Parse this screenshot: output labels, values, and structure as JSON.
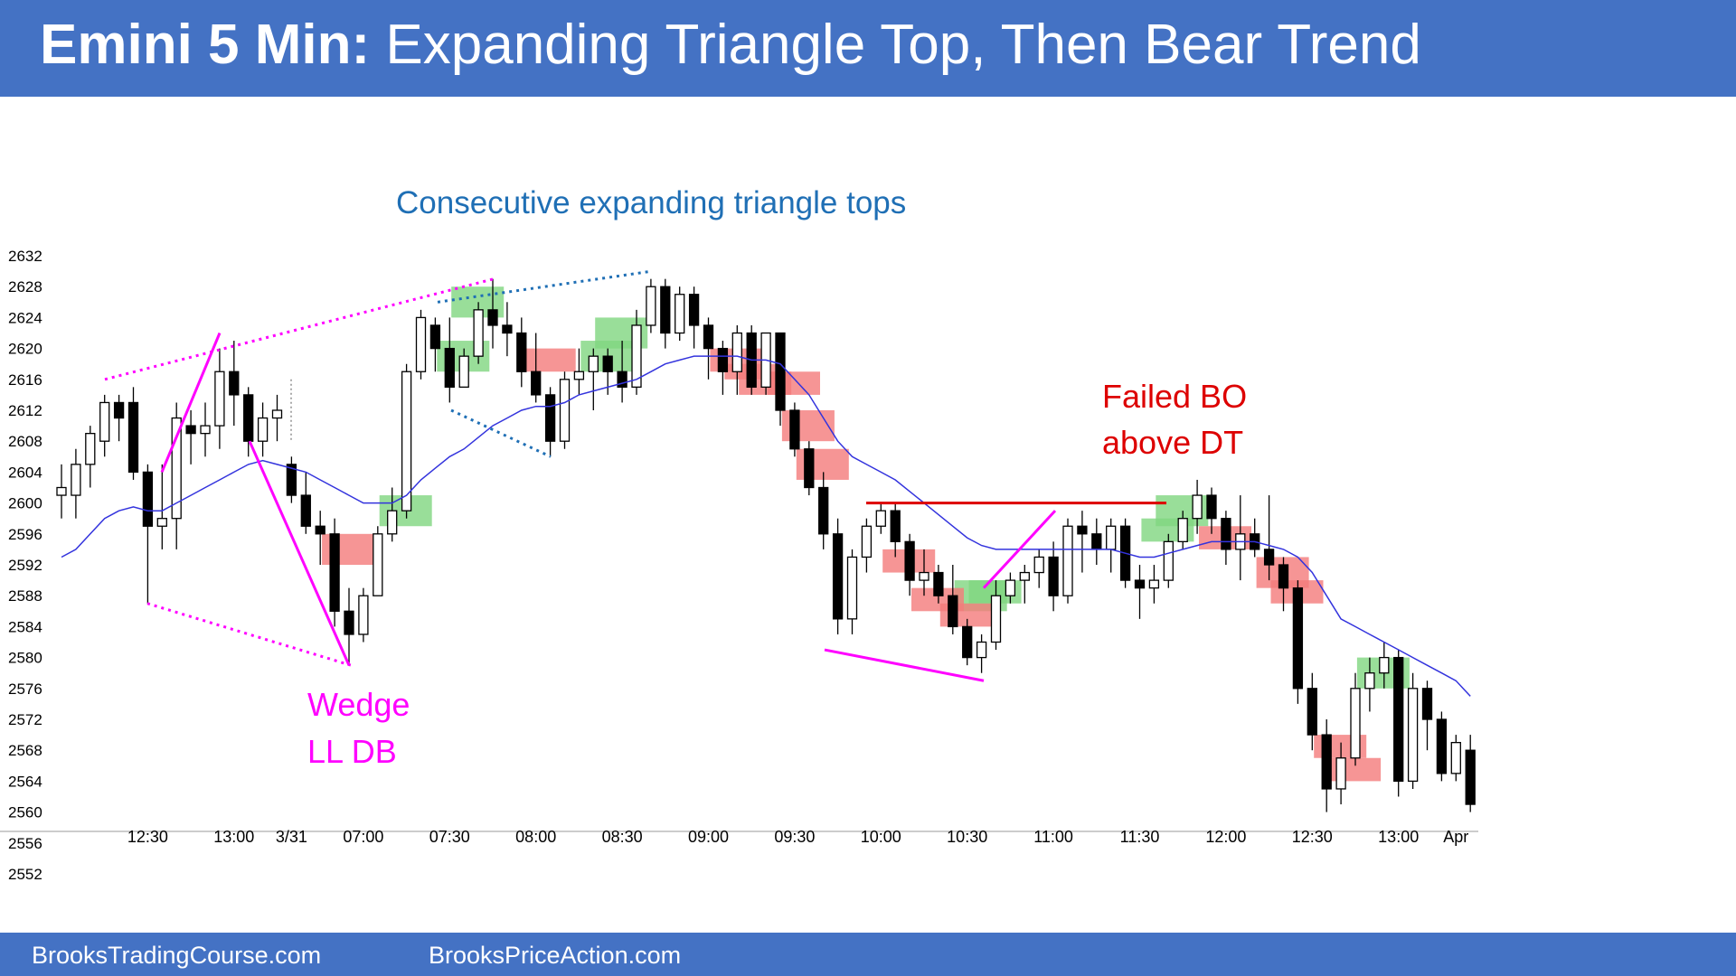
{
  "header": {
    "title_bold": "Emini 5 Min:",
    "title_rest": "Expanding Triangle Top, Then Bear Trend"
  },
  "footer": {
    "left_link": "BrooksTradingCourse.com",
    "right_link": "BrooksPriceAction.com"
  },
  "colors": {
    "header_bg": "#4472C4",
    "bull_body": "#ffffff",
    "bear_body": "#000000",
    "ema_line": "#3333dd",
    "magenta": "#ff00ff",
    "dotted_blue": "#1f6fb5",
    "resistance_red": "#dd0000",
    "green_box": "#7fd67f",
    "red_box": "#f47a7a"
  },
  "chart_data": {
    "type": "candlestick",
    "ylim": [
      2550,
      2634
    ],
    "y_ticks": [
      2632,
      2628,
      2624,
      2620,
      2616,
      2612,
      2608,
      2604,
      2600,
      2596,
      2592,
      2588,
      2584,
      2580,
      2576,
      2572,
      2568,
      2564,
      2560,
      2556,
      2552
    ],
    "x_ticks": [
      {
        "bar": 6,
        "label": "12:30"
      },
      {
        "bar": 12,
        "label": "13:00"
      },
      {
        "bar": 16,
        "label": "3/31"
      },
      {
        "bar": 21,
        "label": "07:00"
      },
      {
        "bar": 27,
        "label": "07:30"
      },
      {
        "bar": 33,
        "label": "08:00"
      },
      {
        "bar": 39,
        "label": "08:30"
      },
      {
        "bar": 45,
        "label": "09:00"
      },
      {
        "bar": 51,
        "label": "09:30"
      },
      {
        "bar": 57,
        "label": "10:00"
      },
      {
        "bar": 63,
        "label": "10:30"
      },
      {
        "bar": 69,
        "label": "11:00"
      },
      {
        "bar": 75,
        "label": "11:30"
      },
      {
        "bar": 81,
        "label": "12:00"
      },
      {
        "bar": 87,
        "label": "12:30"
      },
      {
        "bar": 93,
        "label": "13:00"
      },
      {
        "bar": 97,
        "label": "Apr"
      }
    ],
    "ohlc": [
      [
        2601,
        2605,
        2598,
        2602
      ],
      [
        2601,
        2607,
        2598,
        2605
      ],
      [
        2605,
        2610,
        2602,
        2609
      ],
      [
        2608,
        2614,
        2606,
        2613
      ],
      [
        2613,
        2614,
        2608,
        2611
      ],
      [
        2613,
        2615,
        2603,
        2604
      ],
      [
        2604,
        2605,
        2587,
        2597
      ],
      [
        2597,
        2605,
        2594,
        2598
      ],
      [
        2598,
        2613,
        2594,
        2611
      ],
      [
        2610,
        2612,
        2605,
        2609
      ],
      [
        2609,
        2613,
        2606,
        2610
      ],
      [
        2610,
        2620,
        2607,
        2617
      ],
      [
        2617,
        2621,
        2610,
        2614
      ],
      [
        2614,
        2615,
        2606,
        2608
      ],
      [
        2608,
        2613,
        2606,
        2611
      ],
      [
        2611,
        2614,
        2608,
        2612
      ],
      [
        2605,
        2606,
        2600,
        2601
      ],
      [
        2601,
        2604,
        2596,
        2597
      ],
      [
        2597,
        2599,
        2592,
        2596
      ],
      [
        2596,
        2598,
        2584,
        2586
      ],
      [
        2586,
        2589,
        2579,
        2583
      ],
      [
        2583,
        2589,
        2582,
        2588
      ],
      [
        2588,
        2597,
        2588,
        2596
      ],
      [
        2596,
        2602,
        2595,
        2599
      ],
      [
        2599,
        2618,
        2598,
        2617
      ],
      [
        2617,
        2625,
        2616,
        2624
      ],
      [
        2623,
        2624,
        2617,
        2620
      ],
      [
        2620,
        2624,
        2613,
        2615
      ],
      [
        2615,
        2620,
        2615,
        2619
      ],
      [
        2619,
        2626,
        2618,
        2625
      ],
      [
        2625,
        2629,
        2620,
        2623
      ],
      [
        2623,
        2626,
        2619,
        2622
      ],
      [
        2622,
        2624,
        2615,
        2617
      ],
      [
        2617,
        2622,
        2613,
        2614
      ],
      [
        2614,
        2615,
        2606,
        2608
      ],
      [
        2608,
        2617,
        2607,
        2616
      ],
      [
        2616,
        2620,
        2614,
        2617
      ],
      [
        2617,
        2620,
        2612,
        2619
      ],
      [
        2619,
        2620,
        2614,
        2617
      ],
      [
        2617,
        2621,
        2613,
        2615
      ],
      [
        2615,
        2625,
        2614,
        2623
      ],
      [
        2623,
        2629,
        2622,
        2628
      ],
      [
        2628,
        2629,
        2620,
        2622
      ],
      [
        2622,
        2628,
        2621,
        2627
      ],
      [
        2627,
        2628,
        2620,
        2623
      ],
      [
        2623,
        2624,
        2616,
        2620
      ],
      [
        2620,
        2621,
        2614,
        2617
      ],
      [
        2617,
        2623,
        2614,
        2622
      ],
      [
        2622,
        2623,
        2614,
        2615
      ],
      [
        2615,
        2622,
        2614,
        2622
      ],
      [
        2622,
        2622,
        2610,
        2612
      ],
      [
        2612,
        2613,
        2606,
        2607
      ],
      [
        2607,
        2608,
        2601,
        2602
      ],
      [
        2602,
        2604,
        2594,
        2596
      ],
      [
        2596,
        2598,
        2583,
        2585
      ],
      [
        2585,
        2594,
        2583,
        2593
      ],
      [
        2593,
        2598,
        2591,
        2597
      ],
      [
        2597,
        2600,
        2596,
        2599
      ],
      [
        2599,
        2600,
        2593,
        2595
      ],
      [
        2595,
        2596,
        2588,
        2590
      ],
      [
        2590,
        2594,
        2588,
        2591
      ],
      [
        2591,
        2592,
        2587,
        2588
      ],
      [
        2588,
        2592,
        2583,
        2584
      ],
      [
        2584,
        2585,
        2579,
        2580
      ],
      [
        2580,
        2583,
        2578,
        2582
      ],
      [
        2582,
        2590,
        2581,
        2588
      ],
      [
        2588,
        2591,
        2587,
        2590
      ],
      [
        2590,
        2592,
        2587,
        2591
      ],
      [
        2591,
        2594,
        2589,
        2593
      ],
      [
        2593,
        2595,
        2586,
        2588
      ],
      [
        2588,
        2598,
        2587,
        2597
      ],
      [
        2597,
        2599,
        2591,
        2596
      ],
      [
        2596,
        2598,
        2592,
        2594
      ],
      [
        2594,
        2598,
        2591,
        2597
      ],
      [
        2597,
        2598,
        2589,
        2590
      ],
      [
        2590,
        2592,
        2585,
        2589
      ],
      [
        2589,
        2592,
        2587,
        2590
      ],
      [
        2590,
        2596,
        2589,
        2595
      ],
      [
        2595,
        2599,
        2594,
        2598
      ],
      [
        2598,
        2603,
        2596,
        2601
      ],
      [
        2601,
        2602,
        2596,
        2598
      ],
      [
        2598,
        2599,
        2592,
        2594
      ],
      [
        2594,
        2601,
        2590,
        2596
      ],
      [
        2596,
        2598,
        2593,
        2594
      ],
      [
        2594,
        2601,
        2590,
        2592
      ],
      [
        2592,
        2593,
        2586,
        2589
      ],
      [
        2589,
        2590,
        2574,
        2576
      ],
      [
        2576,
        2578,
        2568,
        2570
      ],
      [
        2570,
        2572,
        2560,
        2563
      ],
      [
        2563,
        2569,
        2561,
        2567
      ],
      [
        2567,
        2578,
        2566,
        2576
      ],
      [
        2576,
        2580,
        2573,
        2578
      ],
      [
        2578,
        2582,
        2576,
        2580
      ],
      [
        2580,
        2581,
        2562,
        2564
      ],
      [
        2564,
        2578,
        2563,
        2576
      ],
      [
        2576,
        2577,
        2568,
        2572
      ],
      [
        2572,
        2573,
        2564,
        2565
      ],
      [
        2565,
        2570,
        2564,
        2569
      ],
      [
        2568,
        2570,
        2560,
        2561
      ]
    ],
    "ema20": [
      2593,
      2594,
      2596,
      2598,
      2599,
      2599.5,
      2599,
      2599,
      2600,
      2601,
      2602,
      2603,
      2604,
      2605,
      2605.5,
      2605,
      2604.5,
      2604,
      2603,
      2602,
      2601,
      2600,
      2600,
      2600,
      2601,
      2603,
      2604.5,
      2606,
      2607,
      2608.5,
      2610,
      2611,
      2612,
      2612.5,
      2612.5,
      2613,
      2614,
      2614.5,
      2615,
      2615.5,
      2616,
      2617,
      2618,
      2618.5,
      2619,
      2619,
      2619,
      2619,
      2618.5,
      2618.5,
      2618,
      2616,
      2614,
      2611,
      2608,
      2606,
      2605,
      2604,
      2603,
      2601.5,
      2600,
      2598.5,
      2597,
      2595.5,
      2594.5,
      2594,
      2594,
      2594,
      2594,
      2594,
      2594,
      2594,
      2594,
      2594,
      2593.5,
      2593,
      2593,
      2593.5,
      2594,
      2594.5,
      2595,
      2595,
      2595,
      2595,
      2594.5,
      2594,
      2593,
      2591,
      2588,
      2585,
      2584,
      2583,
      2582,
      2581,
      2580,
      2579,
      2578,
      2577,
      2575
    ]
  },
  "annotations": {
    "consecutive_label": "Consecutive expanding triangle tops",
    "failed_bo_line1": "Failed BO",
    "failed_bo_line2": "above DT",
    "wedge_line1": "Wedge",
    "wedge_line2": "LL DB"
  }
}
